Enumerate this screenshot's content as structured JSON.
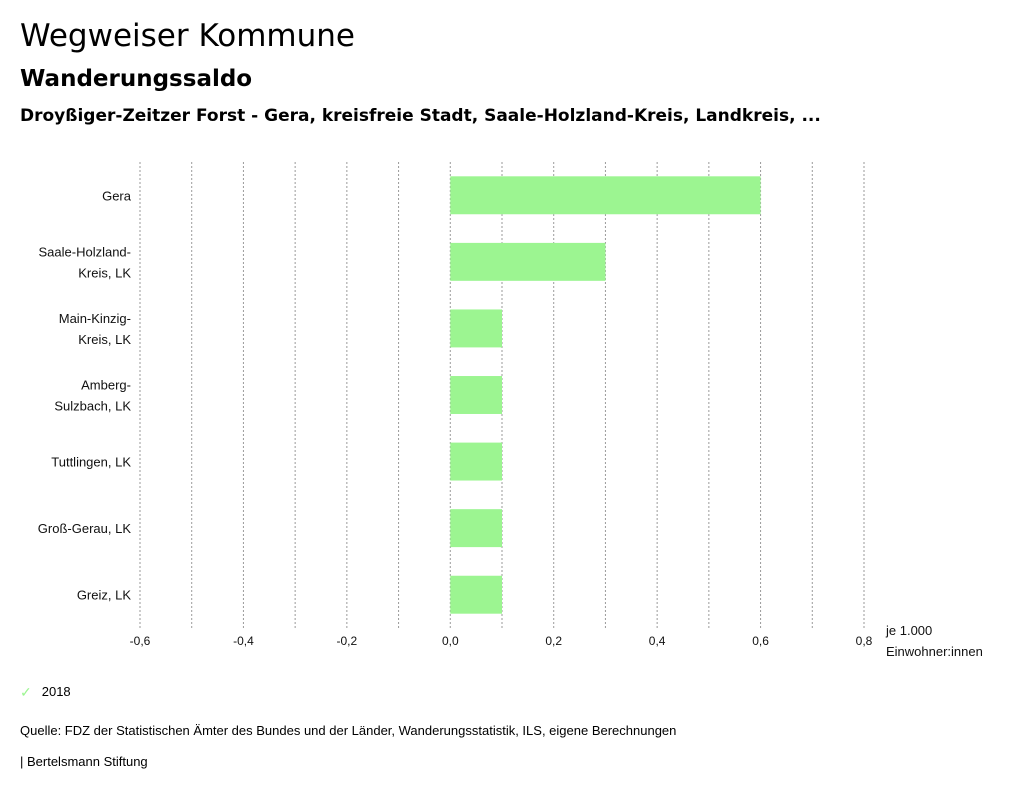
{
  "header": {
    "title": "Wegweiser Kommune",
    "subtitle": "Wanderungssaldo",
    "region": "Droyßiger-Zeitzer Forst - Gera, kreisfreie Stadt, Saale-Holzland-Kreis, Landkreis, ..."
  },
  "chart_data": {
    "type": "bar",
    "orientation": "horizontal",
    "title": "Wanderungssaldo",
    "categories": [
      [
        "Gera"
      ],
      [
        "Saale-Holzland-",
        "Kreis, LK"
      ],
      [
        "Main-Kinzig-",
        "Kreis, LK"
      ],
      [
        "Amberg-",
        "Sulzbach, LK"
      ],
      [
        "Tuttlingen, LK"
      ],
      [
        "Groß-Gerau, LK"
      ],
      [
        "Greiz, LK"
      ]
    ],
    "series": [
      {
        "name": "2018",
        "values": [
          0.6,
          0.3,
          0.1,
          0.1,
          0.1,
          0.1,
          0.1
        ],
        "color": "#9cf591"
      }
    ],
    "xlim": [
      -0.6,
      0.8
    ],
    "ticks": [
      -0.6,
      -0.4,
      -0.2,
      0.0,
      0.2,
      0.4,
      0.6,
      0.8
    ],
    "tick_labels": [
      "-0,6",
      "-0,4",
      "-0,2",
      "0,0",
      "0,2",
      "0,4",
      "0,6",
      "0,8"
    ],
    "unit_label": [
      "je 1.000",
      "Einwohner:innen"
    ],
    "grid": true
  },
  "legend": {
    "label": "2018",
    "color": "#9cf591"
  },
  "footer": {
    "source": "Quelle: FDZ der Statistischen Ämter des Bundes und der Länder, Wanderungsstatistik, ILS, eigene Berechnungen",
    "brand": "| Bertelsmann Stiftung"
  }
}
